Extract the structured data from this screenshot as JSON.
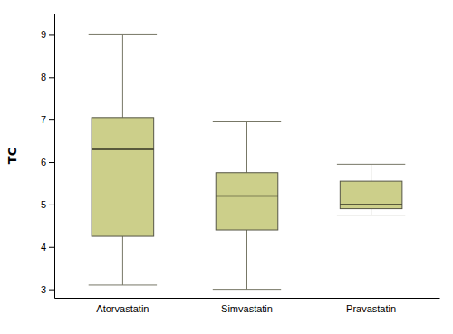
{
  "chart_data": {
    "type": "box",
    "categories": [
      "Atorvastatin",
      "Simvastatin",
      "Pravastatin"
    ],
    "boxes": [
      {
        "whisker_low": 3.1,
        "q1": 4.25,
        "median": 6.3,
        "q3": 7.05,
        "whisker_high": 9.0
      },
      {
        "whisker_low": 3.0,
        "q1": 4.4,
        "median": 5.2,
        "q3": 5.75,
        "whisker_high": 6.95
      },
      {
        "whisker_low": 4.75,
        "q1": 4.9,
        "median": 5.0,
        "q3": 5.55,
        "whisker_high": 5.95
      }
    ],
    "color": "#cccf8a",
    "ylabel": "TC",
    "ylim": [
      2.8,
      9.5
    ],
    "yticks": [
      3,
      4,
      5,
      6,
      7,
      8,
      9
    ],
    "grid": false
  }
}
